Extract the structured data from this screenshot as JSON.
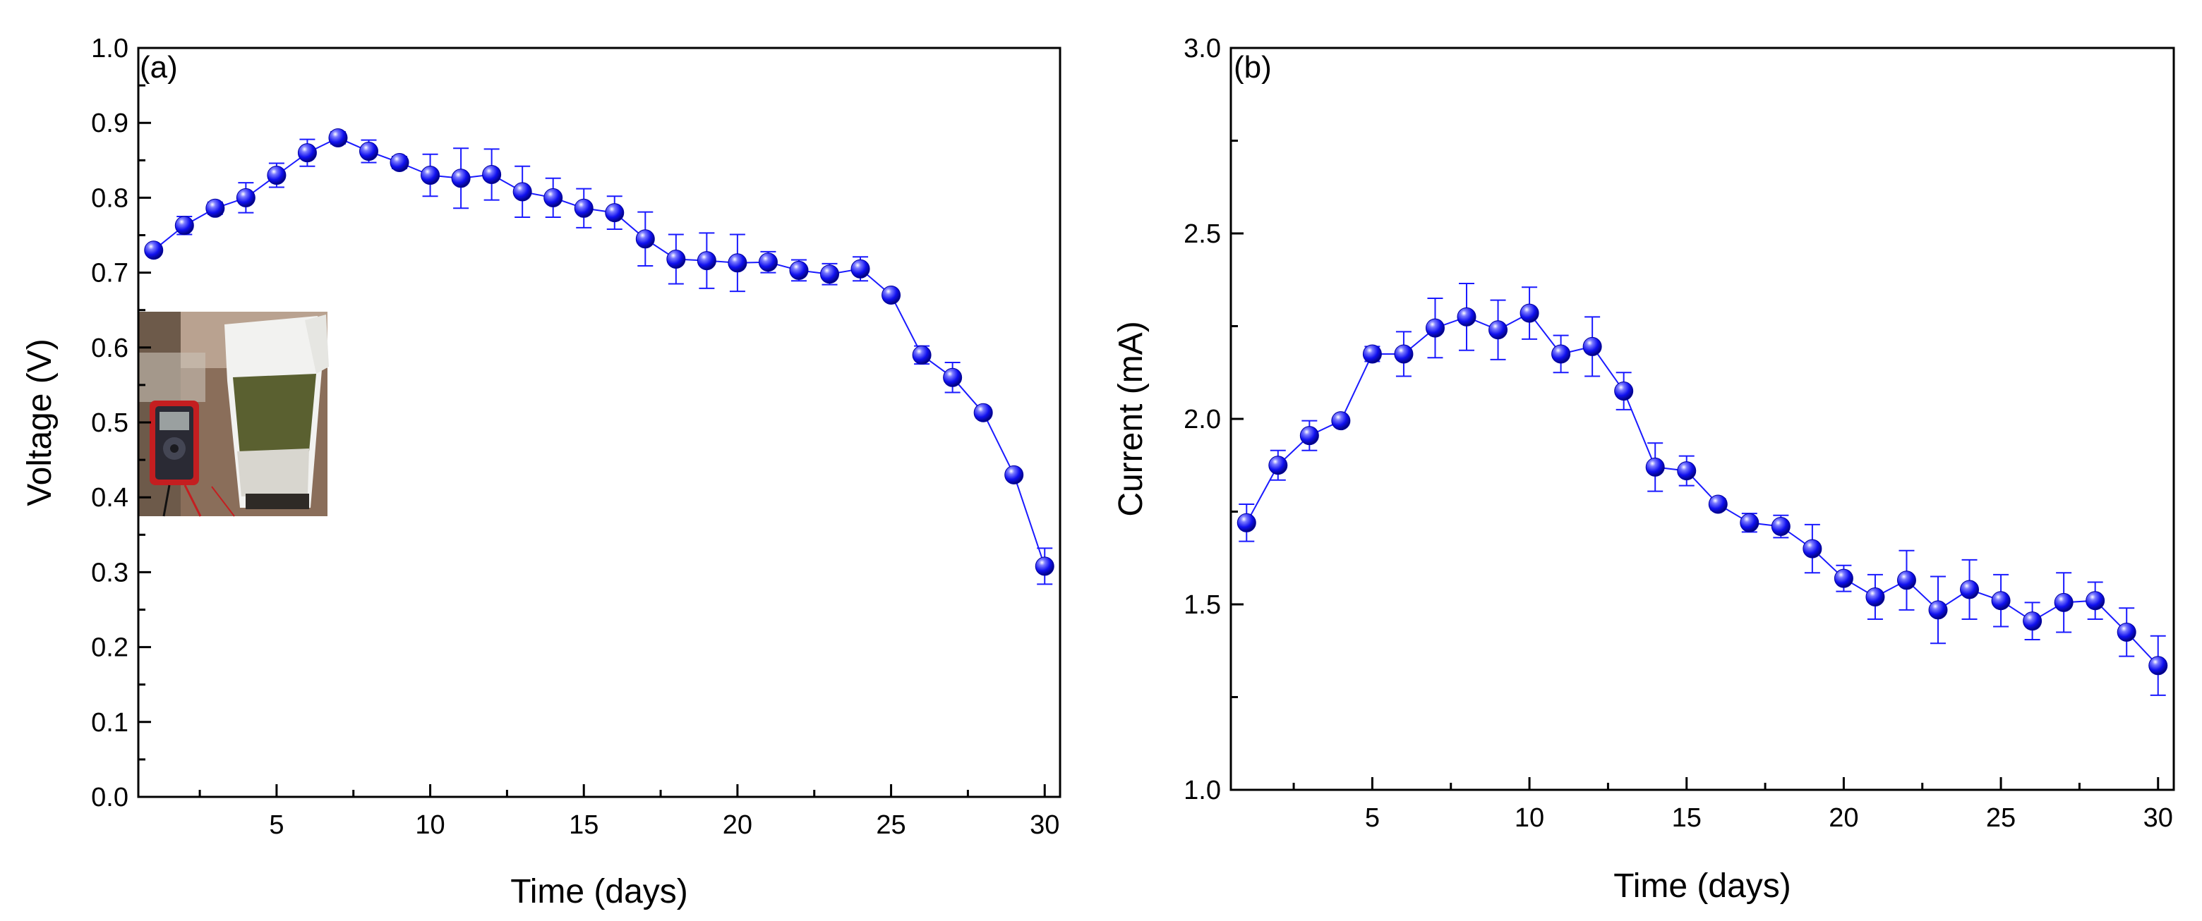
{
  "chart_data": [
    {
      "type": "scatter",
      "panel": "(a)",
      "xlabel": "Time (days)",
      "ylabel": "Voltage (V)",
      "xlim": [
        0.5,
        30.5
      ],
      "ylim": [
        0.0,
        1.0
      ],
      "xticks": [
        5,
        10,
        15,
        20,
        25,
        30
      ],
      "yticks": [
        0.0,
        0.1,
        0.2,
        0.3,
        0.4,
        0.5,
        0.6,
        0.7,
        0.8,
        0.9,
        1.0
      ],
      "ytick_labels": [
        "0.0",
        "0.1",
        "0.2",
        "0.3",
        "0.4",
        "0.5",
        "0.6",
        "0.7",
        "0.8",
        "0.9",
        "1.0"
      ],
      "inset": "photo: multimeter connected to a white bucket filled with soil",
      "series": [
        {
          "name": "Voltage",
          "color": "#1a1aff",
          "x": [
            1,
            2,
            3,
            4,
            5,
            6,
            7,
            8,
            9,
            10,
            11,
            12,
            13,
            14,
            15,
            16,
            17,
            18,
            19,
            20,
            21,
            22,
            23,
            24,
            25,
            26,
            27,
            28,
            29,
            30
          ],
          "values": [
            0.73,
            0.763,
            0.786,
            0.8,
            0.83,
            0.86,
            0.88,
            0.862,
            0.847,
            0.83,
            0.826,
            0.831,
            0.808,
            0.8,
            0.786,
            0.78,
            0.745,
            0.718,
            0.716,
            0.713,
            0.714,
            0.703,
            0.698,
            0.705,
            0.67,
            0.59,
            0.56,
            0.513,
            0.43,
            0.308
          ],
          "errors": [
            0.006,
            0.012,
            0.008,
            0.02,
            0.016,
            0.018,
            0.008,
            0.015,
            0.008,
            0.028,
            0.04,
            0.034,
            0.034,
            0.026,
            0.026,
            0.022,
            0.036,
            0.033,
            0.037,
            0.038,
            0.014,
            0.014,
            0.014,
            0.016,
            0.006,
            0.012,
            0.02,
            0.007,
            0.006,
            0.024
          ]
        }
      ]
    },
    {
      "type": "scatter",
      "panel": "(b)",
      "xlabel": "Time (days)",
      "ylabel": "Current (mA)",
      "xlim": [
        0.5,
        30.5
      ],
      "ylim": [
        1.0,
        3.0
      ],
      "xticks": [
        5,
        10,
        15,
        20,
        25,
        30
      ],
      "yticks": [
        1.0,
        1.5,
        2.0,
        2.5,
        3.0
      ],
      "ytick_labels": [
        "1.0",
        "1.5",
        "2.0",
        "2.5",
        "3.0"
      ],
      "series": [
        {
          "name": "Current",
          "color": "#1a1aff",
          "x": [
            1,
            2,
            3,
            4,
            5,
            6,
            7,
            8,
            9,
            10,
            11,
            12,
            13,
            14,
            15,
            16,
            17,
            18,
            19,
            20,
            21,
            22,
            23,
            24,
            25,
            26,
            27,
            28,
            29,
            30
          ],
          "values": [
            1.72,
            1.875,
            1.955,
            1.995,
            2.175,
            2.175,
            2.245,
            2.275,
            2.24,
            2.285,
            2.175,
            2.195,
            2.075,
            1.87,
            1.86,
            1.77,
            1.72,
            1.71,
            1.65,
            1.57,
            1.52,
            1.565,
            1.485,
            1.54,
            1.51,
            1.455,
            1.505,
            1.51,
            1.425,
            1.335
          ],
          "errors": [
            0.05,
            0.04,
            0.04,
            0.012,
            0.02,
            0.06,
            0.08,
            0.09,
            0.08,
            0.07,
            0.05,
            0.08,
            0.05,
            0.065,
            0.04,
            0.015,
            0.025,
            0.03,
            0.065,
            0.035,
            0.06,
            0.08,
            0.09,
            0.08,
            0.07,
            0.05,
            0.08,
            0.05,
            0.065,
            0.08
          ]
        }
      ]
    }
  ]
}
